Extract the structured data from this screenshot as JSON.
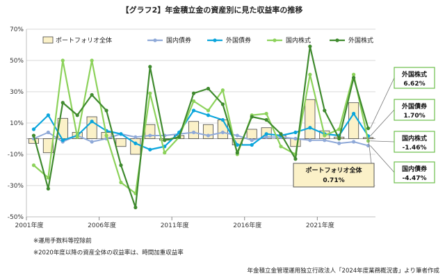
{
  "chart_data": {
    "type": "bar+line",
    "title": "【グラフ2】年金積立金の資産別に見た収益率の推移",
    "y_ticks": [
      "70%",
      "50%",
      "30%",
      "10%",
      "-10%",
      "-30%",
      "-50%"
    ],
    "y_tick_values": [
      70,
      50,
      30,
      10,
      -10,
      -30,
      -50
    ],
    "ylim": [
      -50,
      70
    ],
    "x_tick_labels": [
      "2001年度",
      "2006年度",
      "2011年度",
      "2016年度",
      "2021年度"
    ],
    "x_tick_years": [
      2001,
      2006,
      2011,
      2016,
      2021
    ],
    "years": [
      2001,
      2002,
      2003,
      2004,
      2005,
      2006,
      2007,
      2008,
      2009,
      2010,
      2011,
      2012,
      2013,
      2014,
      2015,
      2016,
      2017,
      2018,
      2019,
      2020,
      2021,
      2022,
      2023,
      2024
    ],
    "bars": {
      "name": "ポートフォリオ全体",
      "color": "#fbf1c8",
      "border": "#444444",
      "values": [
        -3,
        -9,
        13,
        4,
        14,
        4,
        -5,
        -10,
        9,
        -1,
        2,
        11,
        9,
        12,
        -4,
        6,
        7,
        2,
        -5,
        25,
        5,
        1,
        23,
        0.71
      ]
    },
    "series": [
      {
        "name": "国内債券",
        "color": "#8fa9d8",
        "width": 2,
        "values": [
          0,
          4,
          -2,
          2,
          -2,
          0,
          3,
          1,
          2,
          2,
          3,
          4,
          2,
          4,
          2,
          -1,
          1,
          1,
          0,
          -1,
          -1,
          -3,
          -2,
          -4.47
        ]
      },
      {
        "name": "外国債券",
        "color": "#0aa5dc",
        "width": 2.2,
        "values": [
          6,
          15,
          -1,
          2,
          11,
          5,
          3,
          -3,
          -7,
          -5,
          4,
          18,
          15,
          12,
          -4,
          -4,
          3,
          2,
          4,
          7,
          3,
          2,
          16,
          1.7
        ]
      },
      {
        "name": "国内株式",
        "color": "#8cd25a",
        "width": 2.2,
        "values": [
          -17,
          -25,
          50,
          1,
          50,
          2,
          -28,
          -35,
          29,
          -9,
          1,
          24,
          18,
          31,
          -10,
          15,
          16,
          -5,
          -10,
          41,
          2,
          6,
          41,
          -1.46
        ]
      },
      {
        "name": "外国株式",
        "color": "#3f8a2e",
        "width": 2.2,
        "values": [
          2,
          -32,
          23,
          15,
          28,
          18,
          -17,
          -44,
          46,
          -1,
          1,
          29,
          32,
          22,
          -9,
          14,
          12,
          3,
          -13,
          59,
          18,
          0,
          39,
          6.62
        ]
      }
    ],
    "legend_position": "top",
    "callouts": [
      {
        "name": "外国株式",
        "value": "6.62%"
      },
      {
        "name": "外国債券",
        "value": "1.70%"
      },
      {
        "name": "国内株式",
        "value": "-1.46%"
      },
      {
        "name": "国内債券",
        "value": "-4.47%"
      }
    ],
    "portfolio_callout": {
      "name": "ポートフォリオ全体",
      "value": "0.71%"
    },
    "notes": [
      "※運用手数料等控除前",
      "※2020年度以降の資産全体の収益率は、時間加重収益率"
    ],
    "source": "年金積立金管理運用独立行政法人「2024年度業務概況書」より筆者作成",
    "gridlines": true
  }
}
